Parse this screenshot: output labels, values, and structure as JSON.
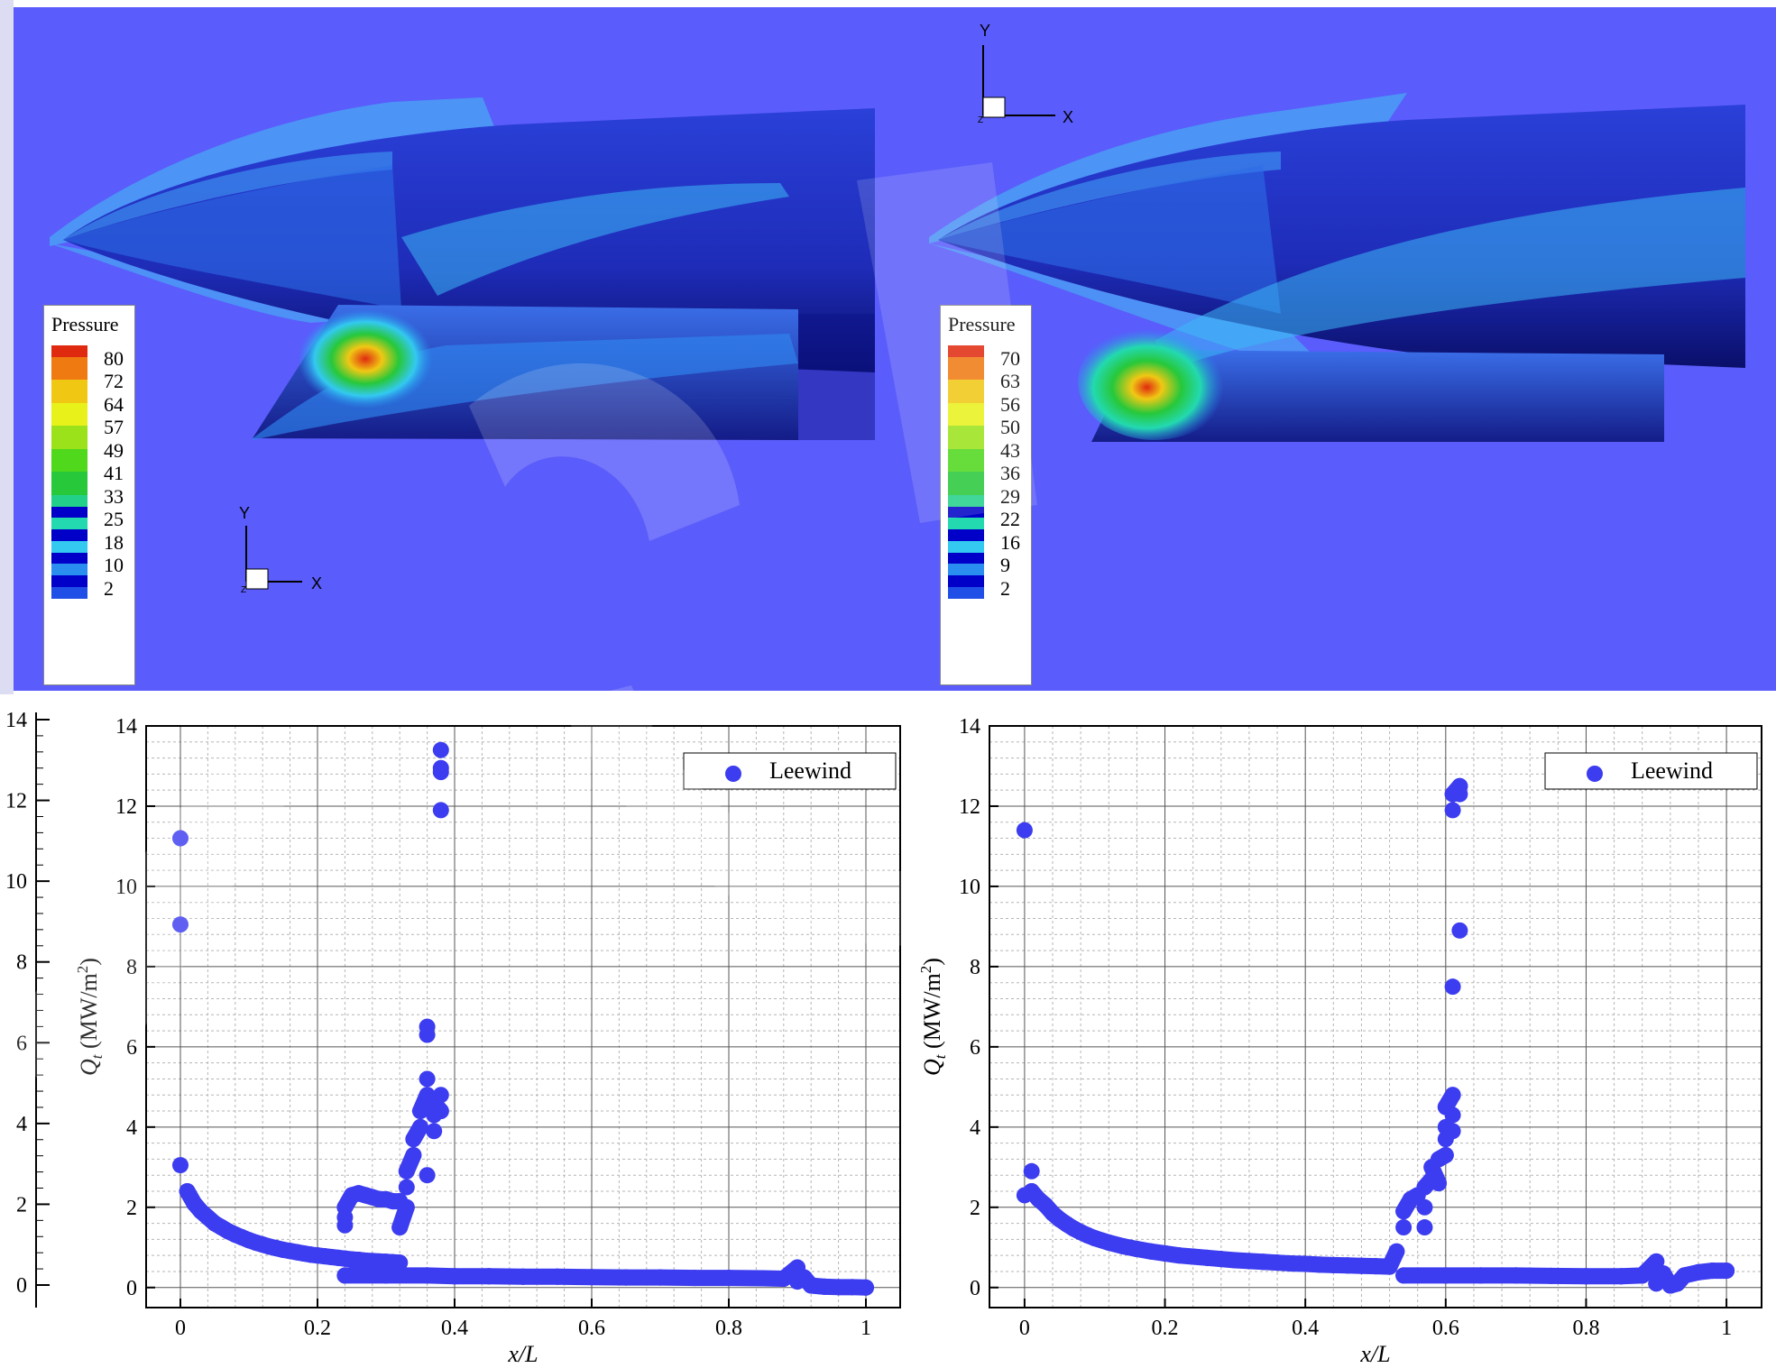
{
  "colors": {
    "background": "#5a5cfb",
    "marker": "#3c3cf0",
    "legend_scale": [
      "#0000c8",
      "#1f4fe6",
      "#2a8ef0",
      "#33c9f0",
      "#23d9b0",
      "#22d08a",
      "#27c83a",
      "#4fd81c",
      "#9be21a",
      "#e8f21a",
      "#f0c814",
      "#f07a12",
      "#e02a10"
    ]
  },
  "contours": [
    {
      "id": "left",
      "legend_title": "Pressure",
      "levels": [
        "80",
        "72",
        "64",
        "57",
        "49",
        "41",
        "33",
        "25",
        "18",
        "10",
        "2"
      ],
      "triad": {
        "y": "Y",
        "x": "X",
        "z": "Z"
      }
    },
    {
      "id": "right",
      "legend_title": "Pressure",
      "levels": [
        "70",
        "63",
        "56",
        "50",
        "43",
        "36",
        "29",
        "22",
        "16",
        "9",
        "2"
      ],
      "triad": {
        "y": "Y",
        "x": "X",
        "z": "Z"
      }
    }
  ],
  "left_edge_axis": {
    "ticks": [
      "14",
      "12",
      "10",
      "8",
      "6",
      "4",
      "2",
      "0"
    ]
  },
  "chart_data": [
    {
      "type": "scatter",
      "ylabel_symbol": "Q",
      "ylabel_subscript": "t",
      "ylabel_unit": " (MW/m",
      "ylabel_sup": "2",
      "ylabel_close": ")",
      "xlabel": "x/L",
      "xlim": [
        -0.05,
        1.05
      ],
      "ylim": [
        -0.5,
        14
      ],
      "xticks": [
        0,
        0.2,
        0.4,
        0.6,
        0.8,
        1
      ],
      "xtick_labels": [
        "0",
        "0.2",
        "0.4",
        "0.6",
        "0.8",
        "1"
      ],
      "yticks": [
        0,
        2,
        4,
        6,
        8,
        10,
        12,
        14
      ],
      "ytick_labels": [
        "0",
        "2",
        "4",
        "6",
        "8",
        "10",
        "12",
        "14"
      ],
      "grid": true,
      "legend": {
        "position": "top-right"
      },
      "series": [
        {
          "name": "Leewind",
          "points": [
            [
              0,
              11.2
            ],
            [
              0,
              9.05
            ],
            [
              0,
              3.05
            ],
            [
              0.01,
              2.4
            ],
            [
              0.02,
              2.1
            ],
            [
              0.03,
              1.9
            ],
            [
              0.04,
              1.75
            ],
            [
              0.05,
              1.6
            ],
            [
              0.06,
              1.5
            ],
            [
              0.07,
              1.4
            ],
            [
              0.08,
              1.32
            ],
            [
              0.09,
              1.25
            ],
            [
              0.1,
              1.18
            ],
            [
              0.11,
              1.12
            ],
            [
              0.12,
              1.07
            ],
            [
              0.13,
              1.02
            ],
            [
              0.14,
              0.98
            ],
            [
              0.15,
              0.94
            ],
            [
              0.16,
              0.91
            ],
            [
              0.17,
              0.88
            ],
            [
              0.18,
              0.85
            ],
            [
              0.19,
              0.82
            ],
            [
              0.2,
              0.8
            ],
            [
              0.21,
              0.78
            ],
            [
              0.22,
              0.76
            ],
            [
              0.23,
              0.74
            ],
            [
              0.24,
              0.72
            ],
            [
              0.25,
              0.7
            ],
            [
              0.26,
              0.69
            ],
            [
              0.27,
              0.67
            ],
            [
              0.28,
              0.66
            ],
            [
              0.29,
              0.65
            ],
            [
              0.3,
              0.64
            ],
            [
              0.31,
              0.63
            ],
            [
              0.32,
              0.62
            ],
            [
              0.24,
              1.55
            ],
            [
              0.24,
              1.75
            ],
            [
              0.24,
              2.0
            ],
            [
              0.25,
              2.3
            ],
            [
              0.26,
              2.35
            ],
            [
              0.27,
              2.3
            ],
            [
              0.28,
              2.25
            ],
            [
              0.29,
              2.2
            ],
            [
              0.3,
              2.2
            ],
            [
              0.31,
              2.15
            ],
            [
              0.32,
              2.15
            ],
            [
              0.32,
              1.5
            ],
            [
              0.33,
              2.0
            ],
            [
              0.33,
              2.5
            ],
            [
              0.33,
              2.9
            ],
            [
              0.34,
              3.3
            ],
            [
              0.34,
              3.7
            ],
            [
              0.35,
              4.0
            ],
            [
              0.35,
              4.4
            ],
            [
              0.36,
              4.8
            ],
            [
              0.36,
              5.2
            ],
            [
              0.36,
              6.3
            ],
            [
              0.36,
              6.5
            ],
            [
              0.36,
              2.8
            ],
            [
              0.37,
              3.9
            ],
            [
              0.37,
              4.3
            ],
            [
              0.37,
              4.6
            ],
            [
              0.38,
              4.4
            ],
            [
              0.38,
              4.8
            ],
            [
              0.38,
              11.9
            ],
            [
              0.38,
              12.85
            ],
            [
              0.38,
              12.95
            ],
            [
              0.38,
              13.4
            ],
            [
              0.24,
              0.3
            ],
            [
              0.3,
              0.3
            ],
            [
              0.36,
              0.3
            ],
            [
              0.4,
              0.28
            ],
            [
              0.45,
              0.28
            ],
            [
              0.5,
              0.27
            ],
            [
              0.55,
              0.27
            ],
            [
              0.6,
              0.26
            ],
            [
              0.65,
              0.25
            ],
            [
              0.7,
              0.25
            ],
            [
              0.75,
              0.24
            ],
            [
              0.8,
              0.24
            ],
            [
              0.85,
              0.23
            ],
            [
              0.88,
              0.22
            ],
            [
              0.9,
              0.5
            ],
            [
              0.9,
              0.15
            ],
            [
              0.91,
              0.25
            ],
            [
              0.92,
              0.05
            ],
            [
              0.94,
              0.02
            ],
            [
              0.96,
              0.01
            ],
            [
              0.98,
              0.01
            ],
            [
              1.0,
              0.0
            ]
          ]
        }
      ]
    },
    {
      "type": "scatter",
      "ylabel_symbol": "Q",
      "ylabel_subscript": "t",
      "ylabel_unit": " (MW/m",
      "ylabel_sup": "2",
      "ylabel_close": ")",
      "xlabel": "x/L",
      "xlim": [
        -0.05,
        1.05
      ],
      "ylim": [
        -0.5,
        14
      ],
      "xticks": [
        0,
        0.2,
        0.4,
        0.6,
        0.8,
        1
      ],
      "xtick_labels": [
        "0",
        "0.2",
        "0.4",
        "0.6",
        "0.8",
        "1"
      ],
      "yticks": [
        0,
        2,
        4,
        6,
        8,
        10,
        12,
        14
      ],
      "ytick_labels": [
        "0",
        "2",
        "4",
        "6",
        "8",
        "10",
        "12",
        "14"
      ],
      "grid": true,
      "legend": {
        "position": "top-right"
      },
      "series": [
        {
          "name": "Leewind",
          "points": [
            [
              0,
              11.4
            ],
            [
              0,
              2.3
            ],
            [
              0.01,
              2.9
            ],
            [
              0.01,
              2.4
            ],
            [
              0.02,
              2.2
            ],
            [
              0.03,
              2.05
            ],
            [
              0.04,
              1.85
            ],
            [
              0.05,
              1.7
            ],
            [
              0.06,
              1.58
            ],
            [
              0.07,
              1.47
            ],
            [
              0.08,
              1.38
            ],
            [
              0.09,
              1.3
            ],
            [
              0.1,
              1.23
            ],
            [
              0.12,
              1.12
            ],
            [
              0.14,
              1.03
            ],
            [
              0.16,
              0.96
            ],
            [
              0.18,
              0.9
            ],
            [
              0.2,
              0.85
            ],
            [
              0.22,
              0.8
            ],
            [
              0.24,
              0.77
            ],
            [
              0.26,
              0.74
            ],
            [
              0.28,
              0.71
            ],
            [
              0.3,
              0.68
            ],
            [
              0.32,
              0.66
            ],
            [
              0.34,
              0.64
            ],
            [
              0.36,
              0.62
            ],
            [
              0.38,
              0.6
            ],
            [
              0.4,
              0.59
            ],
            [
              0.42,
              0.57
            ],
            [
              0.44,
              0.56
            ],
            [
              0.46,
              0.55
            ],
            [
              0.48,
              0.54
            ],
            [
              0.5,
              0.53
            ],
            [
              0.52,
              0.52
            ],
            [
              0.53,
              0.9
            ],
            [
              0.54,
              1.5
            ],
            [
              0.54,
              1.9
            ],
            [
              0.55,
              2.2
            ],
            [
              0.56,
              2.3
            ],
            [
              0.57,
              1.5
            ],
            [
              0.57,
              2.0
            ],
            [
              0.57,
              2.5
            ],
            [
              0.58,
              2.7
            ],
            [
              0.58,
              3.0
            ],
            [
              0.59,
              2.6
            ],
            [
              0.59,
              3.2
            ],
            [
              0.6,
              3.3
            ],
            [
              0.6,
              3.7
            ],
            [
              0.6,
              4.0
            ],
            [
              0.6,
              4.5
            ],
            [
              0.61,
              4.8
            ],
            [
              0.61,
              4.3
            ],
            [
              0.61,
              3.9
            ],
            [
              0.61,
              7.5
            ],
            [
              0.61,
              11.9
            ],
            [
              0.61,
              12.3
            ],
            [
              0.62,
              12.5
            ],
            [
              0.62,
              12.3
            ],
            [
              0.62,
              8.9
            ],
            [
              0.54,
              0.3
            ],
            [
              0.6,
              0.3
            ],
            [
              0.65,
              0.3
            ],
            [
              0.7,
              0.3
            ],
            [
              0.75,
              0.29
            ],
            [
              0.8,
              0.28
            ],
            [
              0.85,
              0.28
            ],
            [
              0.88,
              0.3
            ],
            [
              0.9,
              0.65
            ],
            [
              0.9,
              0.1
            ],
            [
              0.91,
              0.35
            ],
            [
              0.92,
              0.05
            ],
            [
              0.93,
              0.1
            ],
            [
              0.94,
              0.3
            ],
            [
              0.96,
              0.38
            ],
            [
              0.98,
              0.42
            ],
            [
              1.0,
              0.42
            ]
          ]
        }
      ]
    }
  ]
}
